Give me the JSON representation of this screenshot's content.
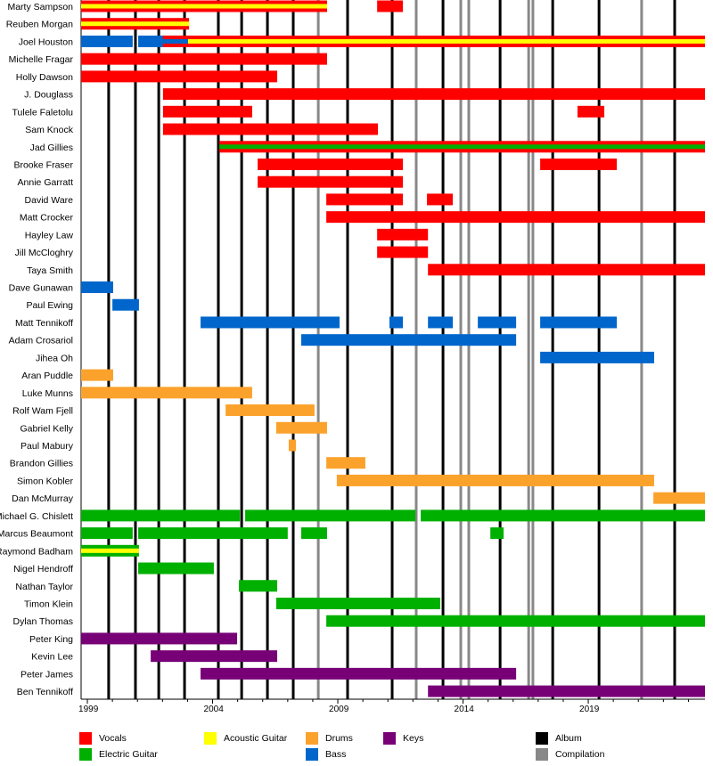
{
  "chart_data": {
    "type": "timeline",
    "xlim": [
      1998.75,
      2023.66
    ],
    "x_ticks": [
      "1999",
      "2004",
      "2009",
      "2014",
      "2019"
    ],
    "x_tick_values": [
      1999,
      2004,
      2009,
      2014,
      2019
    ],
    "colors": {
      "vocals": "#ff0000",
      "acoustic_guitar": "#ffff00",
      "drums": "#fba22c",
      "keys": "#770077",
      "electric_guitar": "#00b000",
      "bass": "#0066cc",
      "album": "#000000",
      "compilation": "#888888"
    },
    "legend": [
      {
        "key": "vocals",
        "label": "Vocals"
      },
      {
        "key": "acoustic_guitar",
        "label": "Acoustic Guitar"
      },
      {
        "key": "drums",
        "label": "Drums"
      },
      {
        "key": "keys",
        "label": "Keys"
      },
      {
        "key": "album",
        "label": "Album"
      },
      {
        "key": "electric_guitar",
        "label": "Electric Guitar"
      },
      {
        "key": "bass",
        "label": "Bass"
      },
      {
        "key": "compilation",
        "label": "Compilation"
      }
    ],
    "albums": [
      1999.85,
      2000.92,
      2001.85,
      2002.88,
      2004.23,
      2005.16,
      2006.19,
      2007.22,
      2009.39,
      2011.17,
      2013.2,
      2015.48,
      2017.58,
      2019.43,
      2022.45
    ],
    "compilations": [
      2008.22,
      2012.13,
      2013.91,
      2014.23,
      2016.62,
      2016.79,
      2021.13
    ],
    "members": [
      {
        "name": "Marty Sampson",
        "spans": [
          {
            "start": 1998.75,
            "end": 2008.57,
            "role": "vocals",
            "stripe": "acoustic_guitar"
          },
          {
            "start": 2010.57,
            "end": 2011.6,
            "role": "vocals"
          }
        ]
      },
      {
        "name": "Reuben Morgan",
        "spans": [
          {
            "start": 1998.75,
            "end": 2003.06,
            "role": "vocals",
            "stripe": "acoustic_guitar"
          }
        ]
      },
      {
        "name": "Joel Houston",
        "spans": [
          {
            "start": 1998.75,
            "end": 2000.81,
            "role": "bass"
          },
          {
            "start": 2001.03,
            "end": 2003.02,
            "role": "bass"
          },
          {
            "start": 2002.02,
            "end": 2003.02,
            "role": "vocals",
            "stripe": "bass"
          },
          {
            "start": 2003.02,
            "end": 2023.66,
            "role": "vocals",
            "stripe": "acoustic_guitar"
          }
        ]
      },
      {
        "name": "Michelle Fragar",
        "spans": [
          {
            "start": 1998.75,
            "end": 2008.57,
            "role": "vocals"
          }
        ]
      },
      {
        "name": "Holly Dawson",
        "spans": [
          {
            "start": 1998.75,
            "end": 2006.58,
            "role": "vocals"
          }
        ]
      },
      {
        "name": "J. Douglass",
        "spans": [
          {
            "start": 2002.02,
            "end": 2023.66,
            "role": "vocals"
          }
        ]
      },
      {
        "name": "Tulele Faletolu",
        "spans": [
          {
            "start": 2002.02,
            "end": 2005.58,
            "role": "vocals"
          },
          {
            "start": 2018.57,
            "end": 2019.64,
            "role": "vocals"
          }
        ]
      },
      {
        "name": "Sam Knock",
        "spans": [
          {
            "start": 2002.02,
            "end": 2010.6,
            "role": "vocals"
          }
        ]
      },
      {
        "name": "Jad Gillies",
        "spans": [
          {
            "start": 2004.27,
            "end": 2023.66,
            "role": "vocals",
            "stripe": "electric_guitar"
          }
        ]
      },
      {
        "name": "Brooke Fraser",
        "spans": [
          {
            "start": 2005.8,
            "end": 2011.6,
            "role": "vocals"
          },
          {
            "start": 2017.08,
            "end": 2020.14,
            "role": "vocals"
          }
        ]
      },
      {
        "name": "Annie Garratt",
        "spans": [
          {
            "start": 2005.8,
            "end": 2011.6,
            "role": "vocals"
          }
        ]
      },
      {
        "name": "David Ware",
        "spans": [
          {
            "start": 2008.54,
            "end": 2011.6,
            "role": "vocals"
          },
          {
            "start": 2012.56,
            "end": 2013.59,
            "role": "vocals"
          }
        ]
      },
      {
        "name": "Matt Crocker",
        "spans": [
          {
            "start": 2008.54,
            "end": 2023.66,
            "role": "vocals"
          }
        ]
      },
      {
        "name": "Hayley Law",
        "spans": [
          {
            "start": 2010.57,
            "end": 2012.6,
            "role": "vocals"
          }
        ]
      },
      {
        "name": "Jill McCloghry",
        "spans": [
          {
            "start": 2010.57,
            "end": 2012.6,
            "role": "vocals"
          }
        ]
      },
      {
        "name": "Taya Smith",
        "spans": [
          {
            "start": 2012.6,
            "end": 2023.66,
            "role": "vocals"
          }
        ]
      },
      {
        "name": "Dave Gunawan",
        "spans": [
          {
            "start": 1998.75,
            "end": 2000.03,
            "role": "bass"
          }
        ]
      },
      {
        "name": "Paul Ewing",
        "spans": [
          {
            "start": 2000.0,
            "end": 2001.06,
            "role": "bass"
          }
        ]
      },
      {
        "name": "Matt Tennikoff",
        "spans": [
          {
            "start": 2003.52,
            "end": 2009.07,
            "role": "bass"
          },
          {
            "start": 2011.06,
            "end": 2011.6,
            "role": "bass"
          },
          {
            "start": 2012.6,
            "end": 2013.59,
            "role": "bass"
          },
          {
            "start": 2014.59,
            "end": 2016.12,
            "role": "bass"
          },
          {
            "start": 2017.08,
            "end": 2020.14,
            "role": "bass"
          }
        ]
      },
      {
        "name": "Adam Crosariol",
        "spans": [
          {
            "start": 2007.54,
            "end": 2016.12,
            "role": "bass"
          }
        ]
      },
      {
        "name": "Jihea Oh",
        "spans": [
          {
            "start": 2017.08,
            "end": 2021.63,
            "role": "bass"
          }
        ]
      },
      {
        "name": "Aran Puddle",
        "spans": [
          {
            "start": 1998.75,
            "end": 2000.03,
            "role": "drums"
          }
        ]
      },
      {
        "name": "Luke Munns",
        "spans": [
          {
            "start": 1998.75,
            "end": 2005.58,
            "role": "drums"
          }
        ]
      },
      {
        "name": "Rolf Wam Fjell",
        "spans": [
          {
            "start": 2004.52,
            "end": 2008.07,
            "role": "drums"
          }
        ]
      },
      {
        "name": "Gabriel Kelly",
        "spans": [
          {
            "start": 2006.54,
            "end": 2008.57,
            "role": "drums"
          }
        ]
      },
      {
        "name": "Paul Mabury",
        "spans": [
          {
            "start": 2007.04,
            "end": 2007.33,
            "role": "drums"
          }
        ]
      },
      {
        "name": "Brandon Gillies",
        "spans": [
          {
            "start": 2008.54,
            "end": 2010.1,
            "role": "drums"
          }
        ]
      },
      {
        "name": "Simon Kobler",
        "spans": [
          {
            "start": 2008.96,
            "end": 2021.63,
            "role": "drums"
          }
        ]
      },
      {
        "name": "Dan McMurray",
        "spans": [
          {
            "start": 2021.6,
            "end": 2023.66,
            "role": "drums"
          }
        ]
      },
      {
        "name": "Michael G. Chislett",
        "spans": [
          {
            "start": 1998.75,
            "end": 2005.09,
            "role": "electric_guitar"
          },
          {
            "start": 2005.3,
            "end": 2012.1,
            "role": "electric_guitar"
          },
          {
            "start": 2012.31,
            "end": 2023.66,
            "role": "electric_guitar"
          }
        ]
      },
      {
        "name": "Marcus Beaumont",
        "spans": [
          {
            "start": 1998.75,
            "end": 2000.81,
            "role": "electric_guitar"
          },
          {
            "start": 2001.03,
            "end": 2007.0,
            "role": "electric_guitar"
          },
          {
            "start": 2007.54,
            "end": 2008.57,
            "role": "electric_guitar"
          },
          {
            "start": 2015.09,
            "end": 2015.62,
            "role": "electric_guitar"
          }
        ]
      },
      {
        "name": "Raymond Badham",
        "spans": [
          {
            "start": 1998.75,
            "end": 2001.06,
            "role": "electric_guitar",
            "stripe": "acoustic_guitar"
          }
        ]
      },
      {
        "name": "Nigel Hendroff",
        "spans": [
          {
            "start": 2001.03,
            "end": 2004.05,
            "role": "electric_guitar"
          }
        ]
      },
      {
        "name": "Nathan Taylor",
        "spans": [
          {
            "start": 2005.05,
            "end": 2006.58,
            "role": "electric_guitar"
          }
        ]
      },
      {
        "name": "Timon Klein",
        "spans": [
          {
            "start": 2006.54,
            "end": 2013.09,
            "role": "electric_guitar"
          }
        ]
      },
      {
        "name": "Dylan Thomas",
        "spans": [
          {
            "start": 2008.54,
            "end": 2023.66,
            "role": "electric_guitar"
          }
        ]
      },
      {
        "name": "Peter King",
        "spans": [
          {
            "start": 1998.75,
            "end": 2004.98,
            "role": "keys"
          }
        ]
      },
      {
        "name": "Kevin Lee",
        "spans": [
          {
            "start": 2001.53,
            "end": 2006.58,
            "role": "keys"
          }
        ]
      },
      {
        "name": "Peter James",
        "spans": [
          {
            "start": 2003.52,
            "end": 2016.12,
            "role": "keys"
          }
        ]
      },
      {
        "name": "Ben Tennikoff",
        "spans": [
          {
            "start": 2012.6,
            "end": 2023.66,
            "role": "keys"
          }
        ]
      }
    ]
  }
}
